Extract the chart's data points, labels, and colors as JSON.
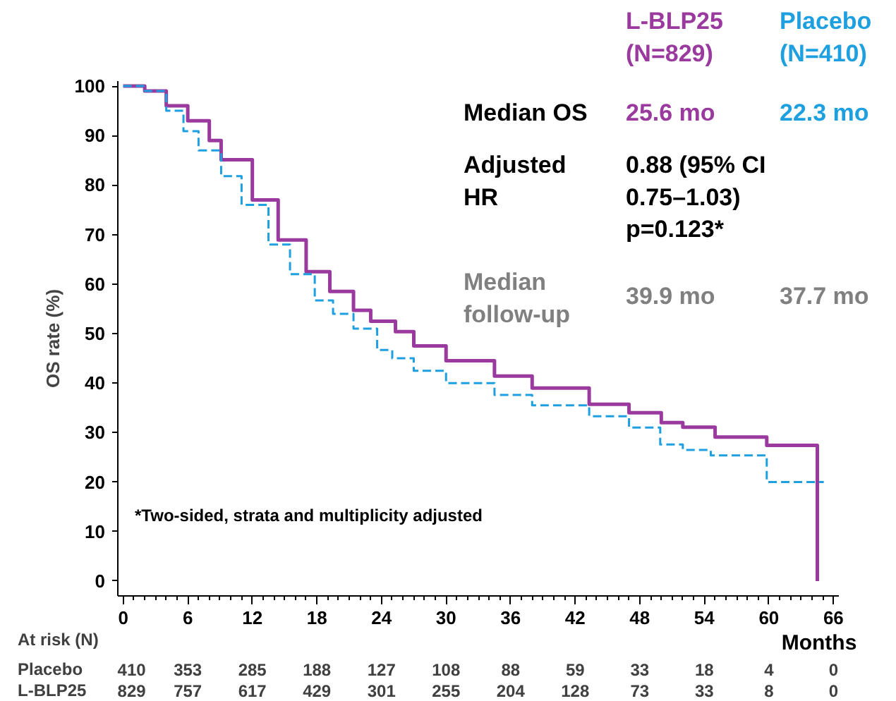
{
  "chart_data": {
    "type": "step",
    "xlabel": "Months",
    "ylabel": "OS rate (%)",
    "xlim": [
      -0.5,
      66.5
    ],
    "ylim": [
      -3,
      101
    ],
    "xticks": [
      0,
      6,
      12,
      18,
      24,
      30,
      36,
      42,
      48,
      54,
      60,
      66
    ],
    "yticks": [
      0,
      10,
      20,
      30,
      40,
      50,
      60,
      70,
      80,
      90,
      100
    ],
    "grid": false,
    "legend": false,
    "series": [
      {
        "name": "L-BLP25",
        "color": "#9b3a9e",
        "line_style": "solid",
        "x": [
          0,
          2,
          4,
          6,
          8,
          9.1,
          12,
          14.4,
          17,
          19.2,
          21.4,
          23,
          25.3,
          27,
          30,
          34.5,
          38,
          43.3,
          47,
          50,
          52,
          55,
          58.5,
          59.8,
          62,
          64.5,
          64.5
        ],
        "values": [
          100,
          99,
          96,
          93,
          89,
          85.1,
          77,
          68.9,
          62.5,
          58.5,
          54.7,
          52.5,
          50.4,
          47.5,
          44.5,
          41.4,
          39,
          35.7,
          34,
          32,
          31.1,
          29.1,
          29.1,
          27.4,
          27.4,
          27.4,
          0
        ]
      },
      {
        "name": "Placebo",
        "color": "#1ea0e0",
        "line_style": "dashed",
        "x": [
          0,
          2,
          4,
          5.6,
          7,
          9.1,
          11,
          13.5,
          15.5,
          17.8,
          19.5,
          21.4,
          23.6,
          25,
          27,
          30,
          34.5,
          38,
          43.3,
          47,
          49.9,
          52,
          54.6,
          57,
          59.5,
          59.8,
          65.1
        ],
        "values": [
          100,
          99,
          95,
          90.9,
          87,
          81.8,
          76,
          68,
          62,
          56.7,
          54,
          51,
          46.7,
          45,
          42.5,
          40,
          37.6,
          35.5,
          33.3,
          31,
          27.6,
          26.5,
          25.4,
          25.4,
          25.4,
          20,
          20
        ]
      }
    ],
    "annotations": [
      "*Two-sided, strata and multiplicity adjusted",
      "(N=829)",
      "(N=410)",
      "Median OS",
      "25.6 mo",
      "22.3 mo",
      "Adjusted\nHR",
      "0.88 (95% CI\n0.75–1.03)\np=0.123*",
      "Median\nfollow-up",
      "39.9 mo",
      "37.7 mo",
      "At risk (N)",
      "Placebo",
      "L-BLP25",
      "410",
      "353",
      "285",
      "188",
      "127",
      "108",
      "88",
      "59",
      "33",
      "18",
      "4",
      "0",
      "829",
      "757",
      "617",
      "429",
      "301",
      "255",
      "204",
      "128",
      "73",
      "33",
      "8",
      "0"
    ]
  }
}
